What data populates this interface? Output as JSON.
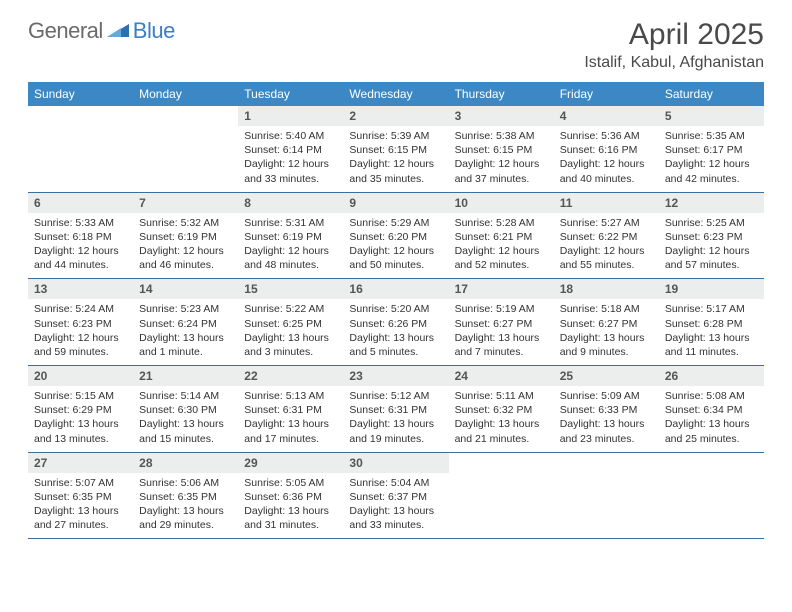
{
  "logo": {
    "general": "General",
    "blue": "Blue"
  },
  "title": "April 2025",
  "subtitle": "Istalif, Kabul, Afghanistan",
  "colors": {
    "header_bg": "#3b88c4",
    "header_text": "#ffffff",
    "daynum_bg": "#eceded",
    "border": "#3b6fa0",
    "logo_blue": "#3b7fc4"
  },
  "day_names": [
    "Sunday",
    "Monday",
    "Tuesday",
    "Wednesday",
    "Thursday",
    "Friday",
    "Saturday"
  ],
  "weeks": [
    [
      {
        "empty": true
      },
      {
        "empty": true
      },
      {
        "n": "1",
        "sr": "5:40 AM",
        "ss": "6:14 PM",
        "dl": "12 hours and 33 minutes."
      },
      {
        "n": "2",
        "sr": "5:39 AM",
        "ss": "6:15 PM",
        "dl": "12 hours and 35 minutes."
      },
      {
        "n": "3",
        "sr": "5:38 AM",
        "ss": "6:15 PM",
        "dl": "12 hours and 37 minutes."
      },
      {
        "n": "4",
        "sr": "5:36 AM",
        "ss": "6:16 PM",
        "dl": "12 hours and 40 minutes."
      },
      {
        "n": "5",
        "sr": "5:35 AM",
        "ss": "6:17 PM",
        "dl": "12 hours and 42 minutes."
      }
    ],
    [
      {
        "n": "6",
        "sr": "5:33 AM",
        "ss": "6:18 PM",
        "dl": "12 hours and 44 minutes."
      },
      {
        "n": "7",
        "sr": "5:32 AM",
        "ss": "6:19 PM",
        "dl": "12 hours and 46 minutes."
      },
      {
        "n": "8",
        "sr": "5:31 AM",
        "ss": "6:19 PM",
        "dl": "12 hours and 48 minutes."
      },
      {
        "n": "9",
        "sr": "5:29 AM",
        "ss": "6:20 PM",
        "dl": "12 hours and 50 minutes."
      },
      {
        "n": "10",
        "sr": "5:28 AM",
        "ss": "6:21 PM",
        "dl": "12 hours and 52 minutes."
      },
      {
        "n": "11",
        "sr": "5:27 AM",
        "ss": "6:22 PM",
        "dl": "12 hours and 55 minutes."
      },
      {
        "n": "12",
        "sr": "5:25 AM",
        "ss": "6:23 PM",
        "dl": "12 hours and 57 minutes."
      }
    ],
    [
      {
        "n": "13",
        "sr": "5:24 AM",
        "ss": "6:23 PM",
        "dl": "12 hours and 59 minutes."
      },
      {
        "n": "14",
        "sr": "5:23 AM",
        "ss": "6:24 PM",
        "dl": "13 hours and 1 minute."
      },
      {
        "n": "15",
        "sr": "5:22 AM",
        "ss": "6:25 PM",
        "dl": "13 hours and 3 minutes."
      },
      {
        "n": "16",
        "sr": "5:20 AM",
        "ss": "6:26 PM",
        "dl": "13 hours and 5 minutes."
      },
      {
        "n": "17",
        "sr": "5:19 AM",
        "ss": "6:27 PM",
        "dl": "13 hours and 7 minutes."
      },
      {
        "n": "18",
        "sr": "5:18 AM",
        "ss": "6:27 PM",
        "dl": "13 hours and 9 minutes."
      },
      {
        "n": "19",
        "sr": "5:17 AM",
        "ss": "6:28 PM",
        "dl": "13 hours and 11 minutes."
      }
    ],
    [
      {
        "n": "20",
        "sr": "5:15 AM",
        "ss": "6:29 PM",
        "dl": "13 hours and 13 minutes."
      },
      {
        "n": "21",
        "sr": "5:14 AM",
        "ss": "6:30 PM",
        "dl": "13 hours and 15 minutes."
      },
      {
        "n": "22",
        "sr": "5:13 AM",
        "ss": "6:31 PM",
        "dl": "13 hours and 17 minutes."
      },
      {
        "n": "23",
        "sr": "5:12 AM",
        "ss": "6:31 PM",
        "dl": "13 hours and 19 minutes."
      },
      {
        "n": "24",
        "sr": "5:11 AM",
        "ss": "6:32 PM",
        "dl": "13 hours and 21 minutes."
      },
      {
        "n": "25",
        "sr": "5:09 AM",
        "ss": "6:33 PM",
        "dl": "13 hours and 23 minutes."
      },
      {
        "n": "26",
        "sr": "5:08 AM",
        "ss": "6:34 PM",
        "dl": "13 hours and 25 minutes."
      }
    ],
    [
      {
        "n": "27",
        "sr": "5:07 AM",
        "ss": "6:35 PM",
        "dl": "13 hours and 27 minutes."
      },
      {
        "n": "28",
        "sr": "5:06 AM",
        "ss": "6:35 PM",
        "dl": "13 hours and 29 minutes."
      },
      {
        "n": "29",
        "sr": "5:05 AM",
        "ss": "6:36 PM",
        "dl": "13 hours and 31 minutes."
      },
      {
        "n": "30",
        "sr": "5:04 AM",
        "ss": "6:37 PM",
        "dl": "13 hours and 33 minutes."
      },
      {
        "empty": true
      },
      {
        "empty": true
      },
      {
        "empty": true
      }
    ]
  ],
  "labels": {
    "sunrise": "Sunrise:",
    "sunset": "Sunset:",
    "daylight": "Daylight:"
  }
}
